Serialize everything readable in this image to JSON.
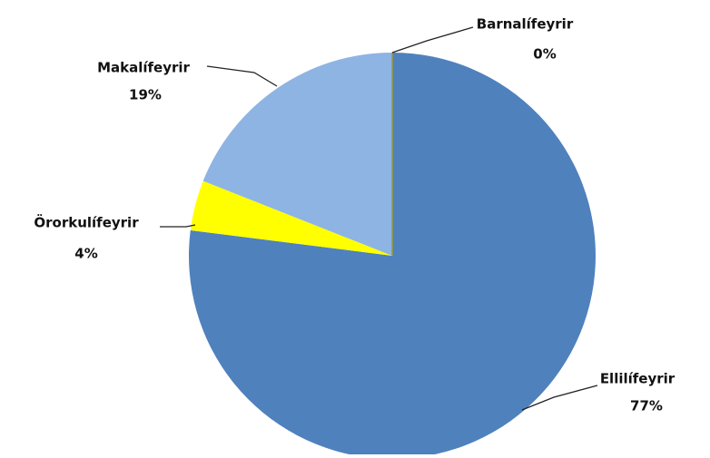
{
  "chart_data": {
    "type": "pie",
    "categories": [
      "Ellilífeyrir",
      "Örorkulífeyrir",
      "Makalífeyrir",
      "Barnalífeyrir"
    ],
    "values": [
      77,
      4,
      19,
      0
    ],
    "value_labels": [
      "77%",
      "4%",
      "19%",
      "0%"
    ],
    "colors": [
      "#4f81bd",
      "#ffff00",
      "#8eb4e3",
      "#9b9b3a"
    ]
  }
}
